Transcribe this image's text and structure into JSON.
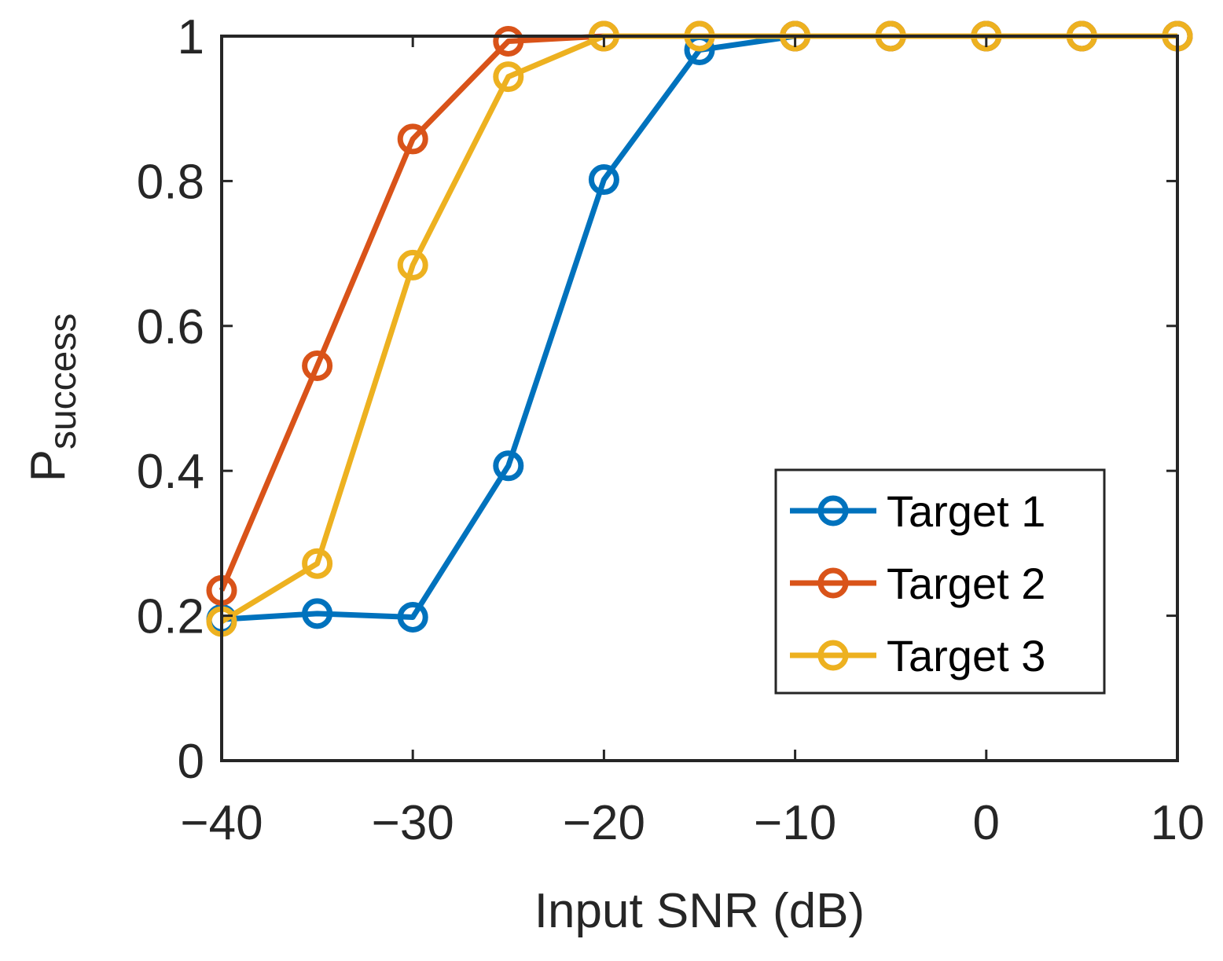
{
  "chart_data": {
    "type": "line",
    "title": "",
    "xlabel": "Input SNR (dB)",
    "ylabel_main": "P",
    "ylabel_subscript": "success",
    "xlim": [
      -40,
      10
    ],
    "ylim": [
      0,
      1
    ],
    "xticks": [
      -40,
      -30,
      -20,
      -10,
      0,
      10
    ],
    "xtick_labels": [
      "−40",
      "−30",
      "−20",
      "−10",
      "0",
      "10"
    ],
    "yticks": [
      0,
      0.2,
      0.4,
      0.6,
      0.8,
      1
    ],
    "ytick_labels": [
      "0",
      "0.2",
      "0.4",
      "0.6",
      "0.8",
      "1"
    ],
    "grid": false,
    "legend_position": "lower-right",
    "x": [
      -40,
      -35,
      -30,
      -25,
      -20,
      -15,
      -10,
      -5,
      0,
      5,
      10
    ],
    "series": [
      {
        "name": "Target 1",
        "color": "#0072BD",
        "values": [
          0.195,
          0.203,
          0.198,
          0.407,
          0.802,
          0.981,
          1.0,
          1.0,
          1.0,
          1.0,
          1.0
        ]
      },
      {
        "name": "Target 2",
        "color": "#D95319",
        "values": [
          0.235,
          0.545,
          0.858,
          0.993,
          1.0,
          1.0,
          1.0,
          1.0,
          1.0,
          1.0,
          1.0
        ]
      },
      {
        "name": "Target 3",
        "color": "#EDB120",
        "values": [
          0.192,
          0.272,
          0.684,
          0.944,
          1.0,
          1.0,
          1.0,
          1.0,
          1.0,
          1.0,
          1.0
        ]
      }
    ]
  }
}
